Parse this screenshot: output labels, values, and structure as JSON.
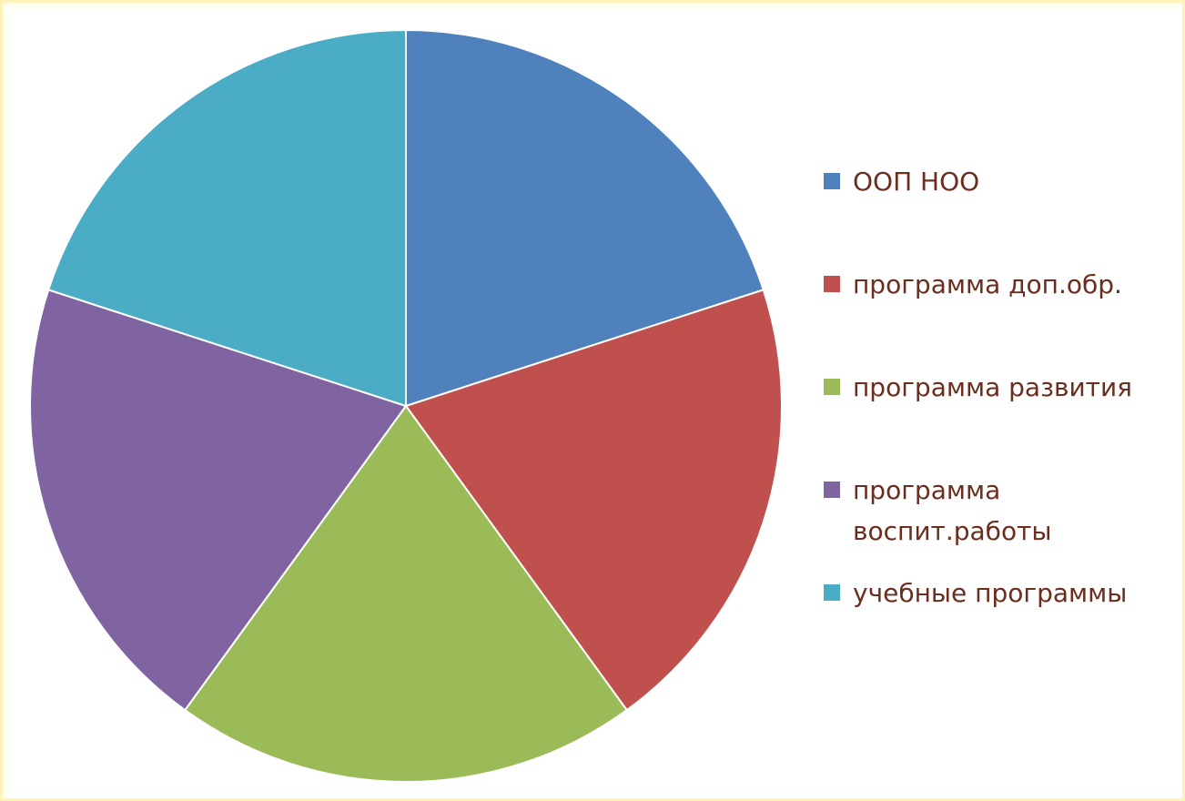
{
  "chart_data": {
    "type": "pie",
    "title": "",
    "categories": [
      "ООП НОО",
      "программа доп.обр.",
      "программа развития",
      "программа воспит.работы",
      "учебные программы"
    ],
    "legend_labels": [
      [
        "ООП НОО"
      ],
      [
        "программа доп.обр."
      ],
      [
        "программа развития"
      ],
      [
        "программа",
        "воспит.работы"
      ],
      [
        "учебные программы"
      ]
    ],
    "values": [
      20,
      20,
      20,
      20,
      20
    ],
    "colors": [
      "#4f81bd",
      "#c0504d",
      "#9bbb59",
      "#8064a2",
      "#4bacc6"
    ],
    "start_angle_deg": 90,
    "direction": "clockwise",
    "legend_position": "right"
  }
}
